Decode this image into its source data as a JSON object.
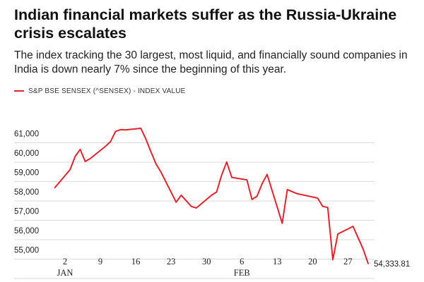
{
  "chart_data": {
    "type": "line",
    "title": "Indian financial markets suffer as the Russia-Ukraine crisis escalates",
    "subtitle": "The index tracking the 30 largest, most liquid, and financially sound companies in India is down nearly 7% since the beginning of this year.",
    "xlabel": "",
    "ylabel": "",
    "ylim": [
      54000,
      61500
    ],
    "grid": true,
    "legend_position": "top-left",
    "series": [
      {
        "name": "S&P BSE SENSEX (^SENSEX) - INDEX VALUE",
        "color": "#e0232d",
        "x": [
          "2021-12-31",
          "2022-01-03",
          "2022-01-04",
          "2022-01-05",
          "2022-01-06",
          "2022-01-07",
          "2022-01-10",
          "2022-01-11",
          "2022-01-12",
          "2022-01-13",
          "2022-01-14",
          "2022-01-17",
          "2022-01-18",
          "2022-01-19",
          "2022-01-20",
          "2022-01-21",
          "2022-01-24",
          "2022-01-25",
          "2022-01-27",
          "2022-01-28",
          "2022-01-31",
          "2022-02-01",
          "2022-02-02",
          "2022-02-03",
          "2022-02-04",
          "2022-02-07",
          "2022-02-08",
          "2022-02-09",
          "2022-02-10",
          "2022-02-11",
          "2022-02-14",
          "2022-02-15",
          "2022-02-16",
          "2022-02-17",
          "2022-02-18",
          "2022-02-21",
          "2022-02-22",
          "2022-02-23",
          "2022-02-24",
          "2022-02-25",
          "2022-02-28",
          "2022-03-02",
          "2022-03-03"
        ],
        "values": [
          58250,
          59180,
          59850,
          60220,
          59600,
          59750,
          60380,
          60620,
          61150,
          61240,
          61230,
          61310,
          60760,
          60100,
          59480,
          59050,
          57500,
          57860,
          57280,
          57200,
          57860,
          58020,
          58890,
          59570,
          58780,
          58650,
          57640,
          57800,
          58450,
          58930,
          56410,
          58150,
          58040,
          57930,
          57880,
          57710,
          57280,
          57230,
          54530,
          55860,
          56250,
          55080,
          54333.81
        ]
      }
    ],
    "y_ticks": [
      "61,000",
      "60,000",
      "59,000",
      "58,000",
      "57,000",
      "56,000",
      "55,000"
    ],
    "y_tick_values": [
      61000,
      60000,
      59000,
      58000,
      57000,
      56000,
      55000
    ],
    "x_ticks": [
      "2",
      "9",
      "16",
      "23",
      "30",
      "6",
      "13",
      "20",
      "27"
    ],
    "x_tick_dates": [
      "2022-01-02",
      "2022-01-09",
      "2022-01-16",
      "2022-01-23",
      "2022-01-30",
      "2022-02-06",
      "2022-02-13",
      "2022-02-20",
      "2022-02-27"
    ],
    "month_labels": [
      "JAN",
      "FEB"
    ],
    "month_label_dates": [
      "2022-01-02",
      "2022-02-06"
    ],
    "end_label": "54,333.81"
  }
}
